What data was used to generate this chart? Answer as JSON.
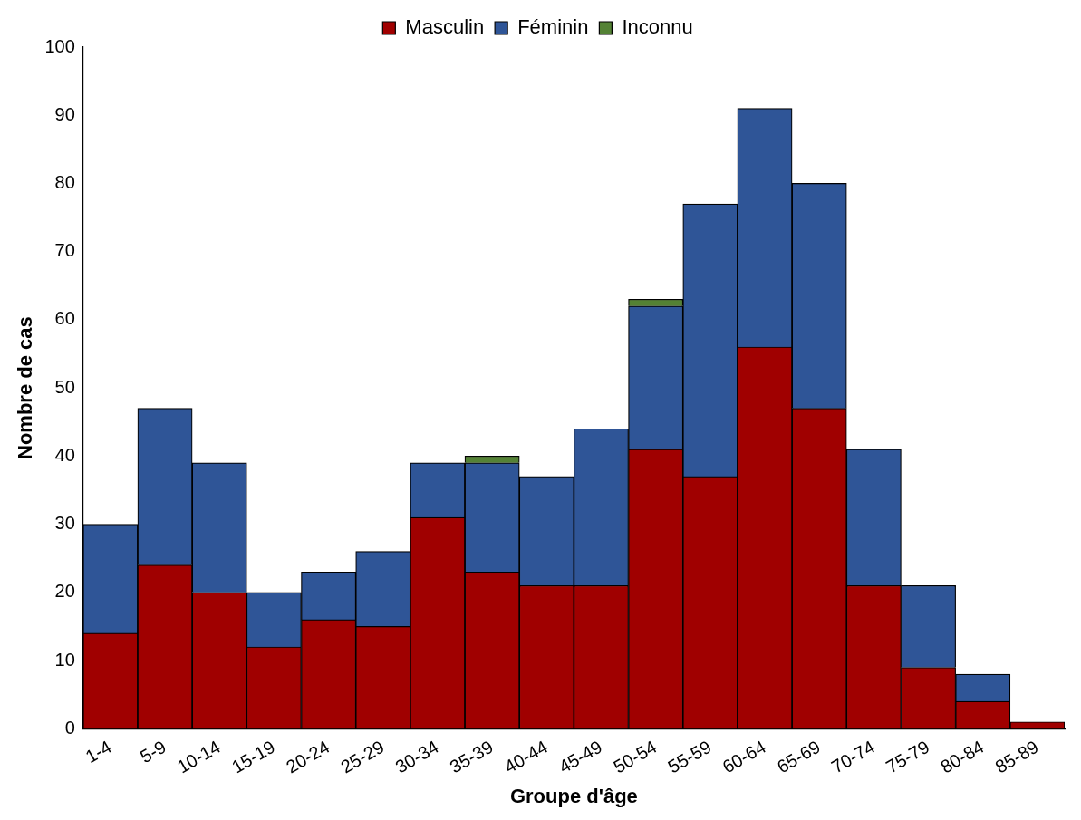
{
  "chart_data": {
    "type": "bar",
    "stacked": true,
    "xlabel": "Groupe d'âge",
    "ylabel": "Nombre de cas",
    "categories": [
      "1-4",
      "5-9",
      "10-14",
      "15-19",
      "20-24",
      "25-29",
      "30-34",
      "35-39",
      "40-44",
      "45-49",
      "50-54",
      "55-59",
      "60-64",
      "65-69",
      "70-74",
      "75-79",
      "80-84",
      "85-89"
    ],
    "series": [
      {
        "name": "Masculin",
        "color": "#a00000",
        "values": [
          14,
          24,
          20,
          12,
          16,
          15,
          31,
          23,
          21,
          21,
          41,
          37,
          56,
          47,
          21,
          9,
          4,
          1
        ]
      },
      {
        "name": "Féminin",
        "color": "#2f5597",
        "values": [
          16,
          23,
          19,
          8,
          7,
          11,
          8,
          16,
          16,
          23,
          21,
          40,
          35,
          33,
          20,
          12,
          4,
          0
        ]
      },
      {
        "name": "Inconnu",
        "color": "#548235",
        "values": [
          0,
          0,
          0,
          0,
          0,
          0,
          0,
          1,
          0,
          0,
          1,
          0,
          0,
          0,
          0,
          0,
          0,
          0
        ]
      }
    ],
    "ylim": [
      0,
      100
    ],
    "yticks": [
      0,
      10,
      20,
      30,
      40,
      50,
      60,
      70,
      80,
      90,
      100
    ],
    "grid": false,
    "legend": "top"
  }
}
